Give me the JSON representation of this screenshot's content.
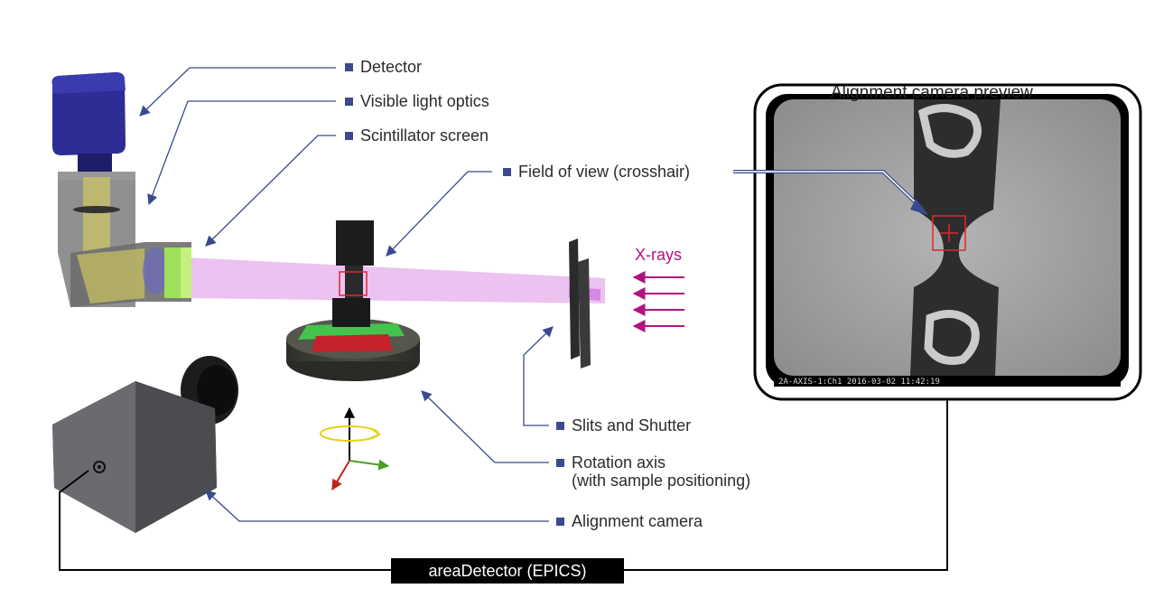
{
  "labels": {
    "detector": "Detector",
    "visible_light_optics": "Visible light optics",
    "scintillator_screen": "Scintillator screen",
    "field_of_view": "Field of view (crosshair)",
    "slits_and_shutter": "Slits and Shutter",
    "rotation_axis_line1": "Rotation axis",
    "rotation_axis_line2": "(with sample positioning)",
    "alignment_camera": "Alignment camera"
  },
  "preview": {
    "title": "Alignment camera preview",
    "caption": "2A-AXIS-1:Ch1  2016-03-02 11:42:19"
  },
  "beam": {
    "label": "X-rays"
  },
  "bus": {
    "label": "areaDetector (EPICS)"
  },
  "colors": {
    "label_arrow": "#3a4a8c",
    "xray": "#b0137e",
    "beam": "#e7b3ee",
    "detector_body": "#2a2a8a",
    "crosshair": "#e0262b"
  }
}
